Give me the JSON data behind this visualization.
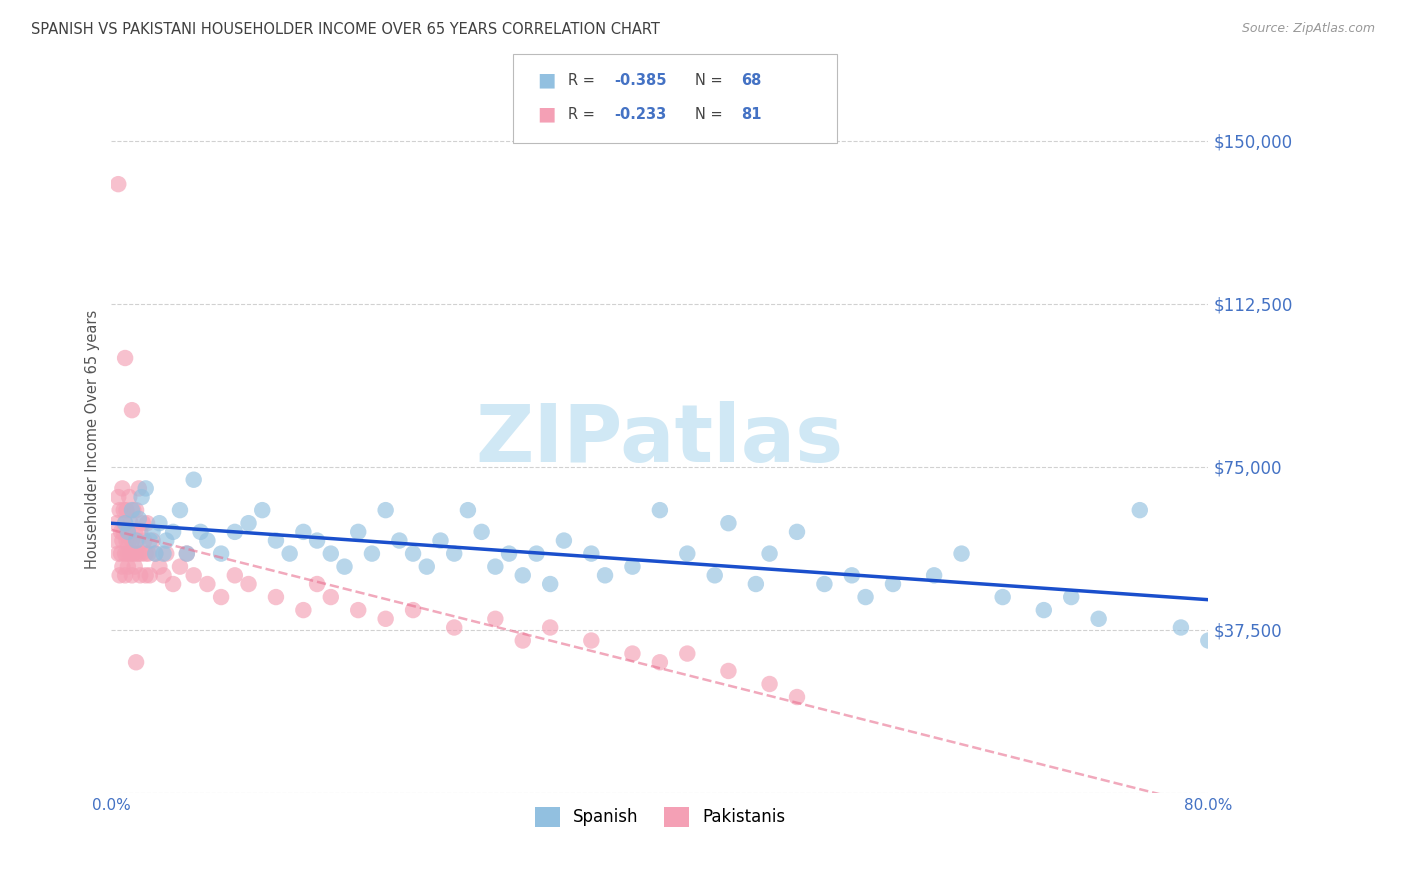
{
  "title": "SPANISH VS PAKISTANI HOUSEHOLDER INCOME OVER 65 YEARS CORRELATION CHART",
  "source": "Source: ZipAtlas.com",
  "ylabel": "Householder Income Over 65 years",
  "xlim": [
    0.0,
    80.0
  ],
  "ylim": [
    0,
    162500
  ],
  "yticks": [
    0,
    37500,
    75000,
    112500,
    150000
  ],
  "ytick_labels": [
    "",
    "$37,500",
    "$75,000",
    "$112,500",
    "$150,000"
  ],
  "xticks": [
    0.0,
    10.0,
    20.0,
    30.0,
    40.0,
    50.0,
    60.0,
    70.0,
    80.0
  ],
  "xtick_labels": [
    "0.0%",
    "",
    "",
    "",
    "",
    "",
    "",
    "",
    "80.0%"
  ],
  "spanish_color": "#92c0e0",
  "pakistani_color": "#f4a0b5",
  "spanish_R": -0.385,
  "spanish_N": 68,
  "pakistani_R": -0.233,
  "pakistani_N": 81,
  "watermark": "ZIPatlas",
  "watermark_color": "#d0e8f5",
  "background_color": "#ffffff",
  "title_color": "#404040",
  "axis_label_color": "#555555",
  "tick_color": "#4472c4",
  "grid_color": "#cccccc",
  "spanish_line_color": "#1a4fcc",
  "pakistani_line_color": "#e87090",
  "spanish_x": [
    1.0,
    1.2,
    1.5,
    1.8,
    2.0,
    2.2,
    2.5,
    2.8,
    3.0,
    3.2,
    3.5,
    3.8,
    4.0,
    4.5,
    5.0,
    5.5,
    6.0,
    6.5,
    7.0,
    8.0,
    9.0,
    10.0,
    11.0,
    12.0,
    13.0,
    14.0,
    15.0,
    16.0,
    17.0,
    18.0,
    19.0,
    20.0,
    21.0,
    22.0,
    23.0,
    24.0,
    25.0,
    26.0,
    27.0,
    28.0,
    29.0,
    30.0,
    31.0,
    32.0,
    33.0,
    35.0,
    36.0,
    38.0,
    40.0,
    42.0,
    44.0,
    45.0,
    47.0,
    48.0,
    50.0,
    52.0,
    54.0,
    55.0,
    57.0,
    60.0,
    62.0,
    65.0,
    68.0,
    70.0,
    72.0,
    75.0,
    78.0,
    80.0
  ],
  "spanish_y": [
    62000,
    60000,
    65000,
    58000,
    63000,
    68000,
    70000,
    58000,
    60000,
    55000,
    62000,
    55000,
    58000,
    60000,
    65000,
    55000,
    72000,
    60000,
    58000,
    55000,
    60000,
    62000,
    65000,
    58000,
    55000,
    60000,
    58000,
    55000,
    52000,
    60000,
    55000,
    65000,
    58000,
    55000,
    52000,
    58000,
    55000,
    65000,
    60000,
    52000,
    55000,
    50000,
    55000,
    48000,
    58000,
    55000,
    50000,
    52000,
    65000,
    55000,
    50000,
    62000,
    48000,
    55000,
    60000,
    48000,
    50000,
    45000,
    48000,
    50000,
    55000,
    45000,
    42000,
    45000,
    40000,
    65000,
    38000,
    35000
  ],
  "pakistani_x": [
    0.3,
    0.4,
    0.5,
    0.5,
    0.6,
    0.6,
    0.7,
    0.7,
    0.8,
    0.8,
    0.8,
    0.9,
    0.9,
    1.0,
    1.0,
    1.0,
    1.1,
    1.1,
    1.2,
    1.2,
    1.2,
    1.3,
    1.3,
    1.4,
    1.4,
    1.5,
    1.5,
    1.6,
    1.6,
    1.7,
    1.7,
    1.8,
    1.8,
    1.9,
    2.0,
    2.0,
    2.1,
    2.1,
    2.2,
    2.3,
    2.4,
    2.5,
    2.5,
    2.6,
    2.7,
    2.8,
    3.0,
    3.2,
    3.5,
    3.8,
    4.0,
    4.5,
    5.0,
    5.5,
    6.0,
    7.0,
    8.0,
    9.0,
    10.0,
    12.0,
    14.0,
    15.0,
    16.0,
    18.0,
    20.0,
    22.0,
    25.0,
    28.0,
    30.0,
    32.0,
    35.0,
    38.0,
    40.0,
    42.0,
    45.0,
    48.0,
    50.0,
    0.5,
    1.0,
    1.5,
    1.8
  ],
  "pakistani_y": [
    58000,
    62000,
    55000,
    68000,
    50000,
    65000,
    60000,
    55000,
    52000,
    70000,
    58000,
    65000,
    60000,
    55000,
    62000,
    50000,
    58000,
    65000,
    60000,
    55000,
    52000,
    68000,
    58000,
    55000,
    62000,
    58000,
    50000,
    65000,
    55000,
    60000,
    52000,
    55000,
    65000,
    58000,
    70000,
    55000,
    60000,
    50000,
    55000,
    62000,
    58000,
    55000,
    50000,
    62000,
    55000,
    50000,
    58000,
    55000,
    52000,
    50000,
    55000,
    48000,
    52000,
    55000,
    50000,
    48000,
    45000,
    50000,
    48000,
    45000,
    42000,
    48000,
    45000,
    42000,
    40000,
    42000,
    38000,
    40000,
    35000,
    38000,
    35000,
    32000,
    30000,
    32000,
    28000,
    25000,
    22000,
    140000,
    100000,
    88000,
    30000
  ]
}
